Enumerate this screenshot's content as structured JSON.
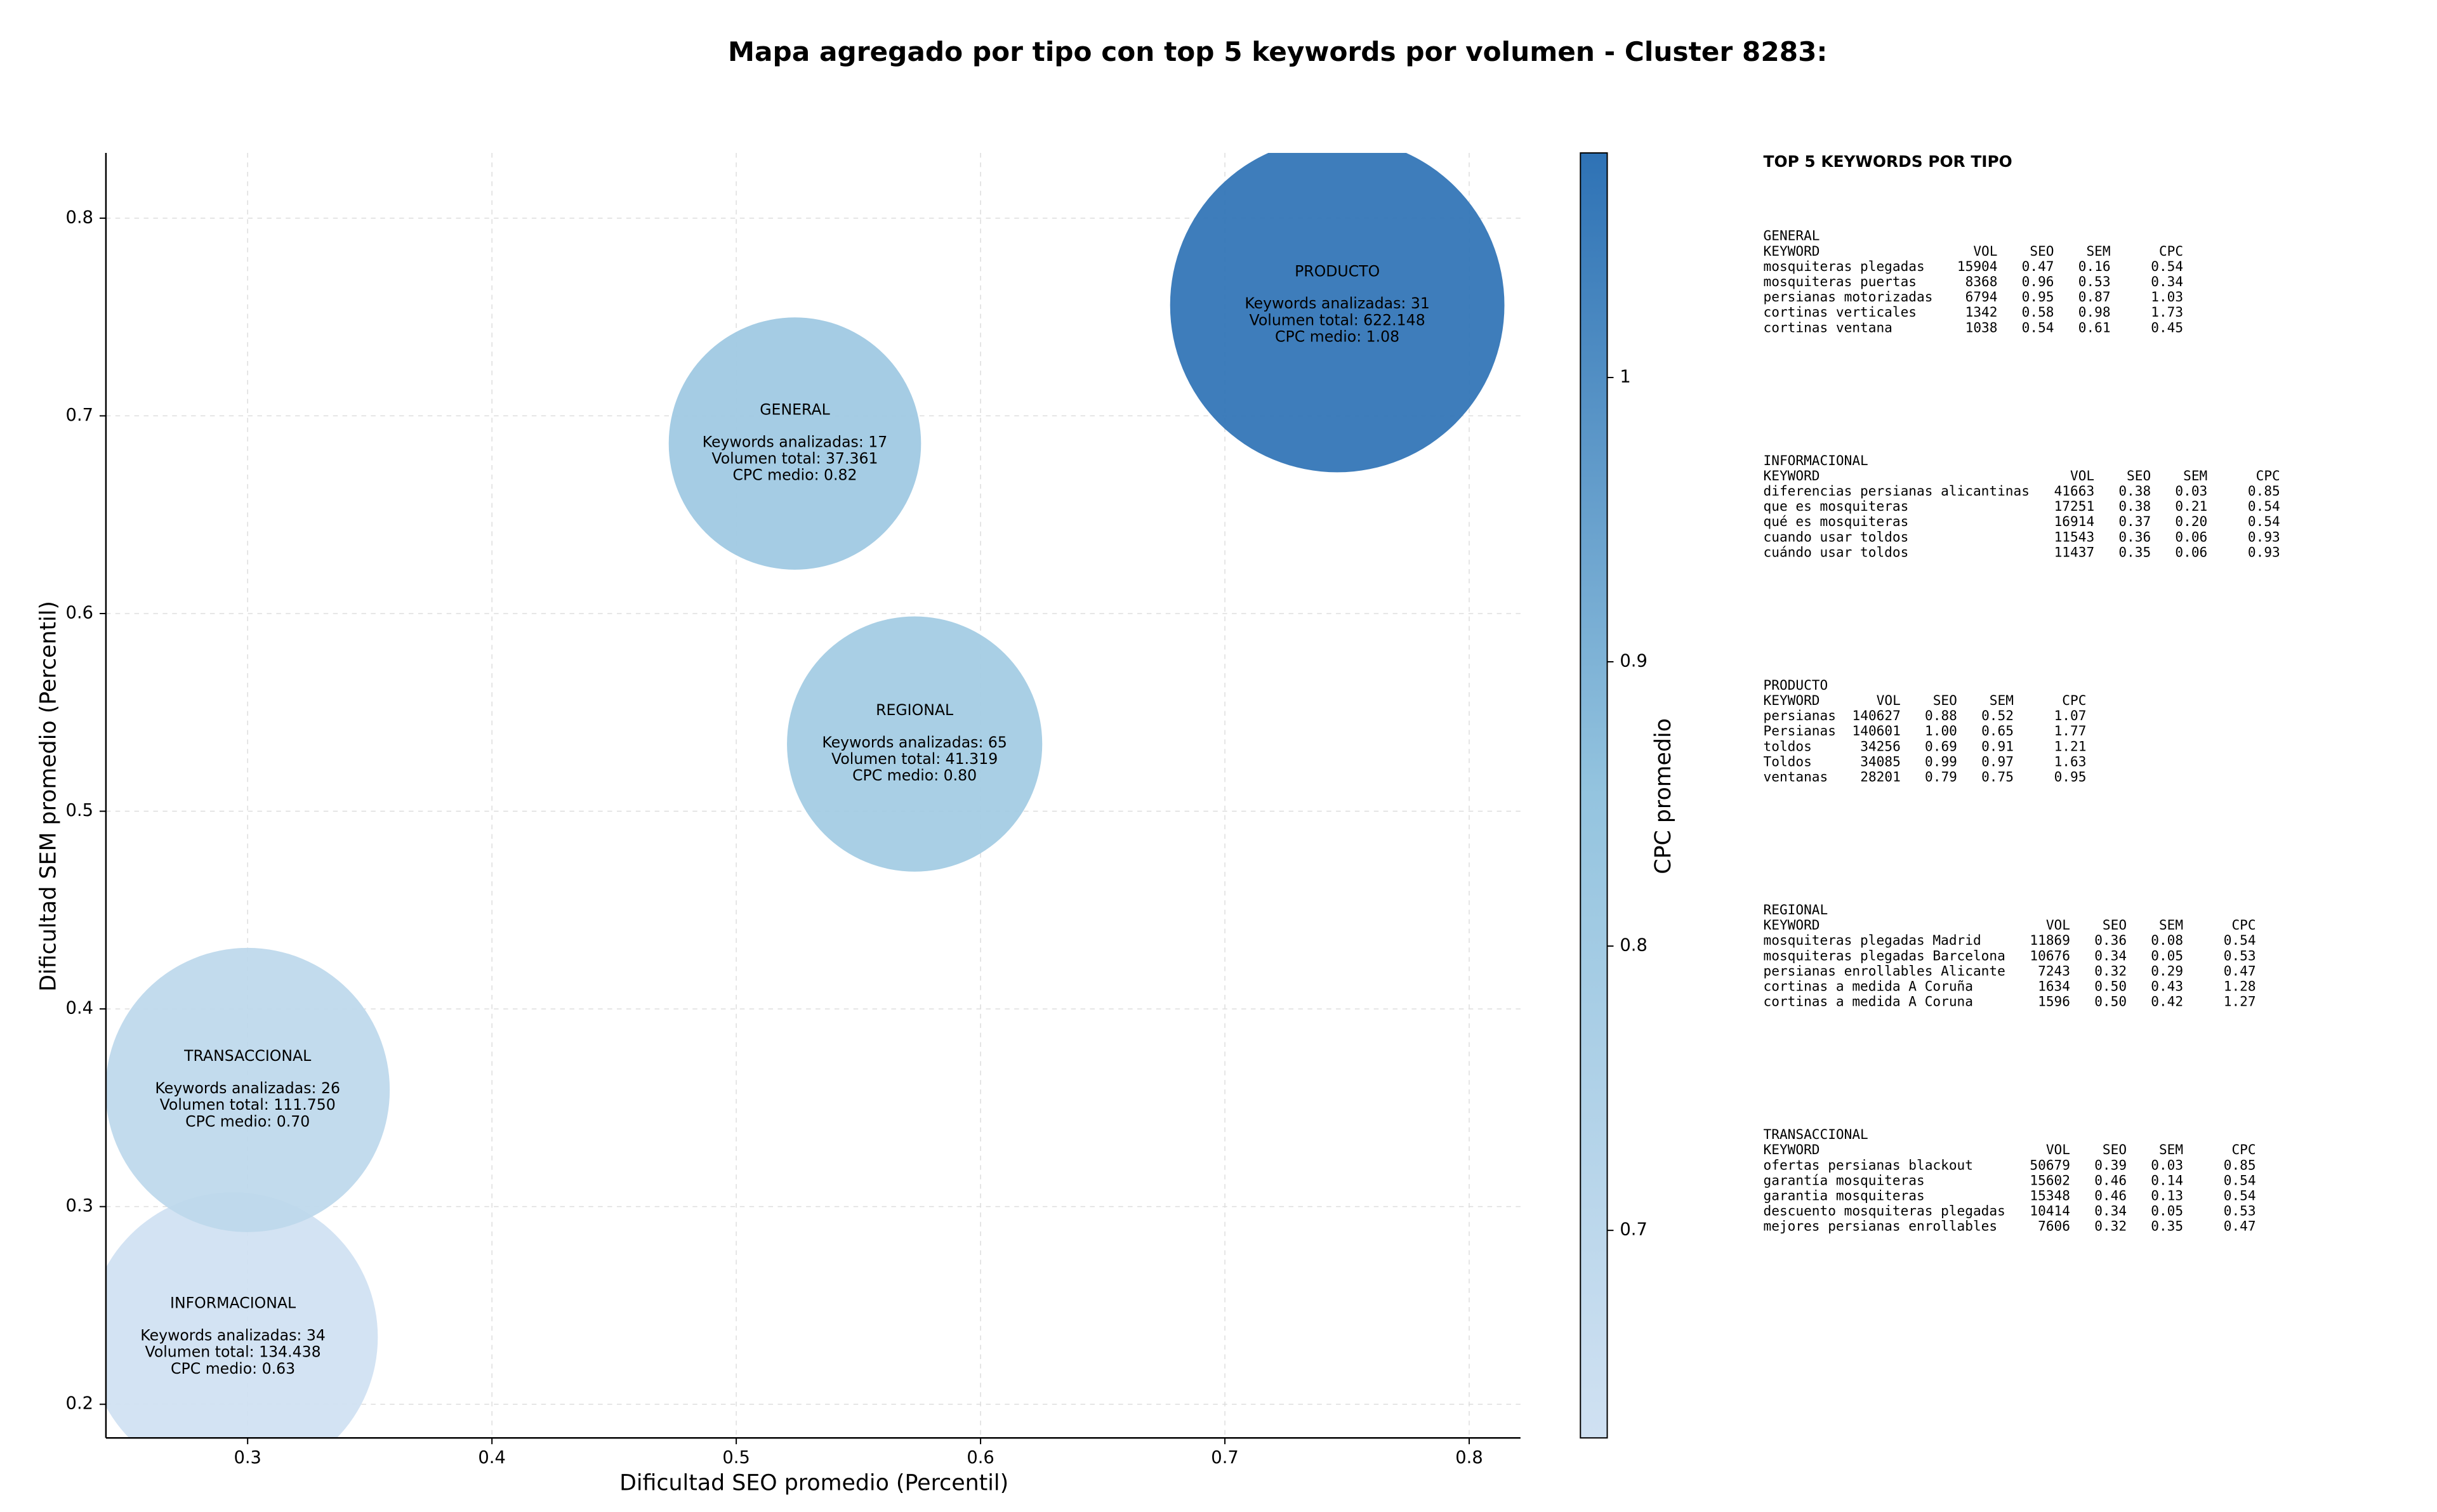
{
  "chart_data": {
    "type": "bubble",
    "title": "Mapa agregado por tipo con top 5 keywords por volumen - Cluster 8283:",
    "xlabel": "Dificultad SEO promedio (Percentil)",
    "ylabel": "Dificultad SEM promedio (Percentil)",
    "colorbar_label": "CPC promedio",
    "xlim": [
      0.242,
      0.821
    ],
    "ylim": [
      0.183,
      0.833
    ],
    "xticks": [
      0.3,
      0.4,
      0.5,
      0.6,
      0.7,
      0.8
    ],
    "yticks": [
      0.2,
      0.3,
      0.4,
      0.5,
      0.6,
      0.7,
      0.8
    ],
    "clim": [
      0.627,
      1.079
    ],
    "cticks": [
      0.7,
      0.8,
      0.9,
      1.0
    ],
    "colormap": [
      "#d0e1f2",
      "#94c4df",
      "#2e72b5"
    ],
    "grid": true,
    "points": [
      {
        "name": "GENERAL",
        "x": 0.524,
        "y": 0.686,
        "keywords": 17,
        "volume": 37361,
        "cpc": 0.82,
        "labels": [
          "Keywords analizadas: 17",
          "Volumen total: 37.361",
          "CPC medio: 0.82"
        ]
      },
      {
        "name": "INFORMACIONAL",
        "x": 0.294,
        "y": 0.234,
        "keywords": 34,
        "volume": 134438,
        "cpc": 0.63,
        "labels": [
          "Keywords analizadas: 34",
          "Volumen total: 134.438",
          "CPC medio: 0.63"
        ]
      },
      {
        "name": "PRODUCTO",
        "x": 0.746,
        "y": 0.756,
        "keywords": 31,
        "volume": 622148,
        "cpc": 1.08,
        "labels": [
          "Keywords analizadas: 31",
          "Volumen total: 622.148",
          "CPC medio: 1.08"
        ]
      },
      {
        "name": "REGIONAL",
        "x": 0.573,
        "y": 0.534,
        "keywords": 65,
        "volume": 41319,
        "cpc": 0.8,
        "labels": [
          "Keywords analizadas: 65",
          "Volumen total: 41.319",
          "CPC medio: 0.80"
        ]
      },
      {
        "name": "TRANSACCIONAL",
        "x": 0.3,
        "y": 0.359,
        "keywords": 26,
        "volume": 111750,
        "cpc": 0.7,
        "labels": [
          "Keywords analizadas: 26",
          "Volumen total: 111.750",
          "CPC medio: 0.70"
        ]
      }
    ]
  },
  "panel": {
    "title": "TOP 5 KEYWORDS POR TIPO",
    "sections": [
      {
        "name": "GENERAL",
        "header": [
          "KEYWORD",
          "VOL",
          "SEO",
          "SEM",
          "CPC"
        ],
        "rows": [
          [
            "mosquiteras plegadas",
            "15904",
            "0.47",
            "0.16",
            "0.54"
          ],
          [
            "mosquiteras puertas",
            "8368",
            "0.96",
            "0.53",
            "0.34"
          ],
          [
            "persianas motorizadas",
            "6794",
            "0.95",
            "0.87",
            "1.03"
          ],
          [
            "cortinas verticales",
            "1342",
            "0.58",
            "0.98",
            "1.73"
          ],
          [
            "cortinas ventana",
            "1038",
            "0.54",
            "0.61",
            "0.45"
          ]
        ]
      },
      {
        "name": "INFORMACIONAL",
        "header": [
          "KEYWORD",
          "VOL",
          "SEO",
          "SEM",
          "CPC"
        ],
        "rows": [
          [
            "diferencias persianas alicantinas",
            "41663",
            "0.38",
            "0.03",
            "0.85"
          ],
          [
            "que es mosquiteras",
            "17251",
            "0.38",
            "0.21",
            "0.54"
          ],
          [
            "qué es mosquiteras",
            "16914",
            "0.37",
            "0.20",
            "0.54"
          ],
          [
            "cuando usar toldos",
            "11543",
            "0.36",
            "0.06",
            "0.93"
          ],
          [
            "cuándo usar toldos",
            "11437",
            "0.35",
            "0.06",
            "0.93"
          ]
        ]
      },
      {
        "name": "PRODUCTO",
        "header": [
          "KEYWORD",
          "VOL",
          "SEO",
          "SEM",
          "CPC"
        ],
        "rows": [
          [
            "persianas",
            "140627",
            "0.88",
            "0.52",
            "1.07"
          ],
          [
            "Persianas",
            "140601",
            "1.00",
            "0.65",
            "1.77"
          ],
          [
            "toldos",
            "34256",
            "0.69",
            "0.91",
            "1.21"
          ],
          [
            "Toldos",
            "34085",
            "0.99",
            "0.97",
            "1.63"
          ],
          [
            "ventanas",
            "28201",
            "0.79",
            "0.75",
            "0.95"
          ]
        ]
      },
      {
        "name": "REGIONAL",
        "header": [
          "KEYWORD",
          "VOL",
          "SEO",
          "SEM",
          "CPC"
        ],
        "rows": [
          [
            "mosquiteras plegadas Madrid",
            "11869",
            "0.36",
            "0.08",
            "0.54"
          ],
          [
            "mosquiteras plegadas Barcelona",
            "10676",
            "0.34",
            "0.05",
            "0.53"
          ],
          [
            "persianas enrollables Alicante",
            "7243",
            "0.32",
            "0.29",
            "0.47"
          ],
          [
            "cortinas a medida A Coruña",
            "1634",
            "0.50",
            "0.43",
            "1.28"
          ],
          [
            "cortinas a medida A Coruna",
            "1596",
            "0.50",
            "0.42",
            "1.27"
          ]
        ]
      },
      {
        "name": "TRANSACCIONAL",
        "header": [
          "KEYWORD",
          "VOL",
          "SEO",
          "SEM",
          "CPC"
        ],
        "rows": [
          [
            "ofertas persianas blackout",
            "50679",
            "0.39",
            "0.03",
            "0.85"
          ],
          [
            "garantía mosquiteras",
            "15602",
            "0.46",
            "0.14",
            "0.54"
          ],
          [
            "garantia mosquiteras",
            "15348",
            "0.46",
            "0.13",
            "0.54"
          ],
          [
            "descuento mosquiteras plegadas",
            "10414",
            "0.34",
            "0.05",
            "0.53"
          ],
          [
            "mejores persianas enrollables",
            "7606",
            "0.32",
            "0.35",
            "0.47"
          ]
        ]
      }
    ]
  }
}
